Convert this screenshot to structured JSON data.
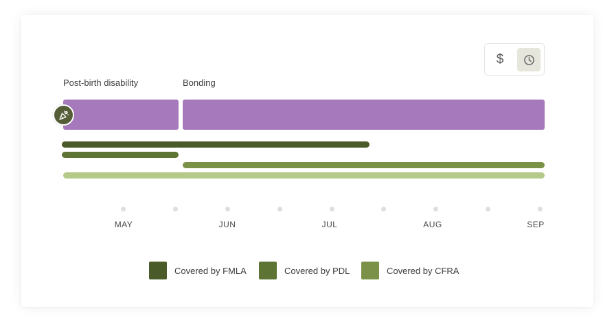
{
  "view_toggle": {
    "dollar_symbol": "$",
    "clock_icon": "clock-icon",
    "selected": "clock"
  },
  "segments": [
    {
      "label": "Post-birth disability"
    },
    {
      "label": "Bonding"
    }
  ],
  "event_marker": {
    "icon": "party-popper-icon"
  },
  "months": [
    "MAY",
    "JUN",
    "JUL",
    "AUG",
    "SEP"
  ],
  "legend": [
    {
      "label": "Covered by FMLA",
      "color": "#4b5a29"
    },
    {
      "label": "Covered by PDL",
      "color": "#5e7435"
    },
    {
      "label": "Covered by CFRA",
      "color": "#7b9148"
    }
  ],
  "colors": {
    "leave_bar": "#a679bd",
    "fmla": "#4b5a29",
    "pdl": "#5e7435",
    "cfra": "#7b9148",
    "state_benefit": "#b5c989"
  }
}
